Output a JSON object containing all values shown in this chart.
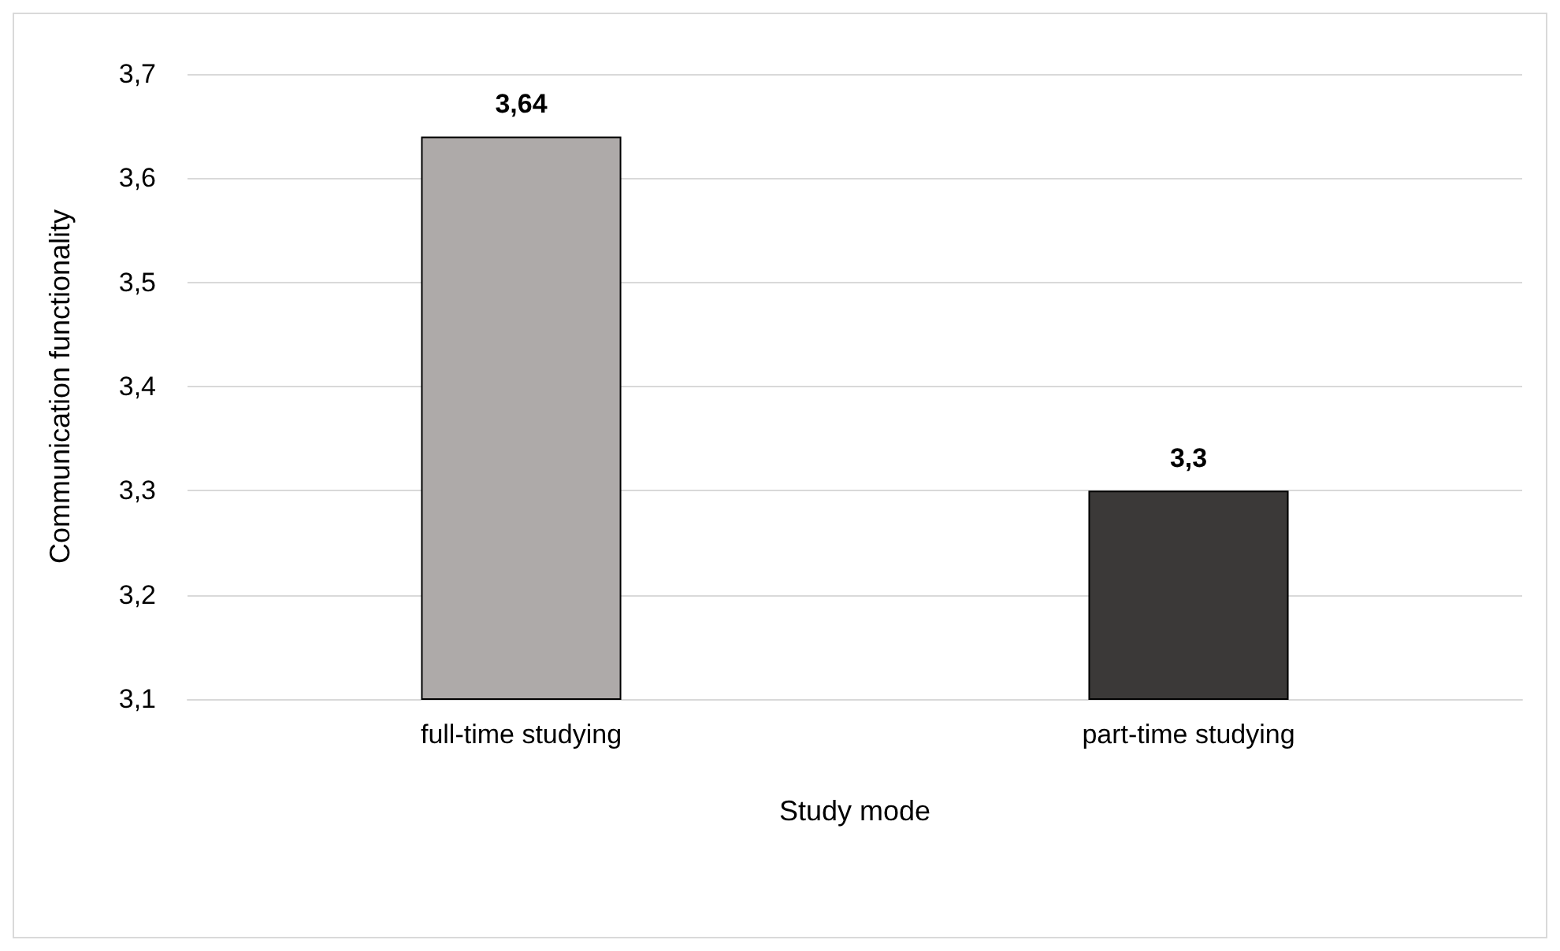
{
  "chart_data": {
    "type": "bar",
    "xlabel": "Study mode",
    "ylabel": "Communication functionality",
    "categories": [
      "full-time studying",
      "part-time studying"
    ],
    "values": [
      3.64,
      3.3
    ],
    "value_labels": [
      "3,64",
      "3,3"
    ],
    "colors": [
      "#aeaaa9",
      "#3b3938"
    ],
    "ylim": [
      3.1,
      3.7
    ],
    "yticks": [
      {
        "value": 3.1,
        "label": "3,1"
      },
      {
        "value": 3.2,
        "label": "3,2"
      },
      {
        "value": 3.3,
        "label": "3,3"
      },
      {
        "value": 3.4,
        "label": "3,4"
      },
      {
        "value": 3.5,
        "label": "3,5"
      },
      {
        "value": 3.6,
        "label": "3,6"
      },
      {
        "value": 3.7,
        "label": "3,7"
      }
    ],
    "grid": "y"
  }
}
